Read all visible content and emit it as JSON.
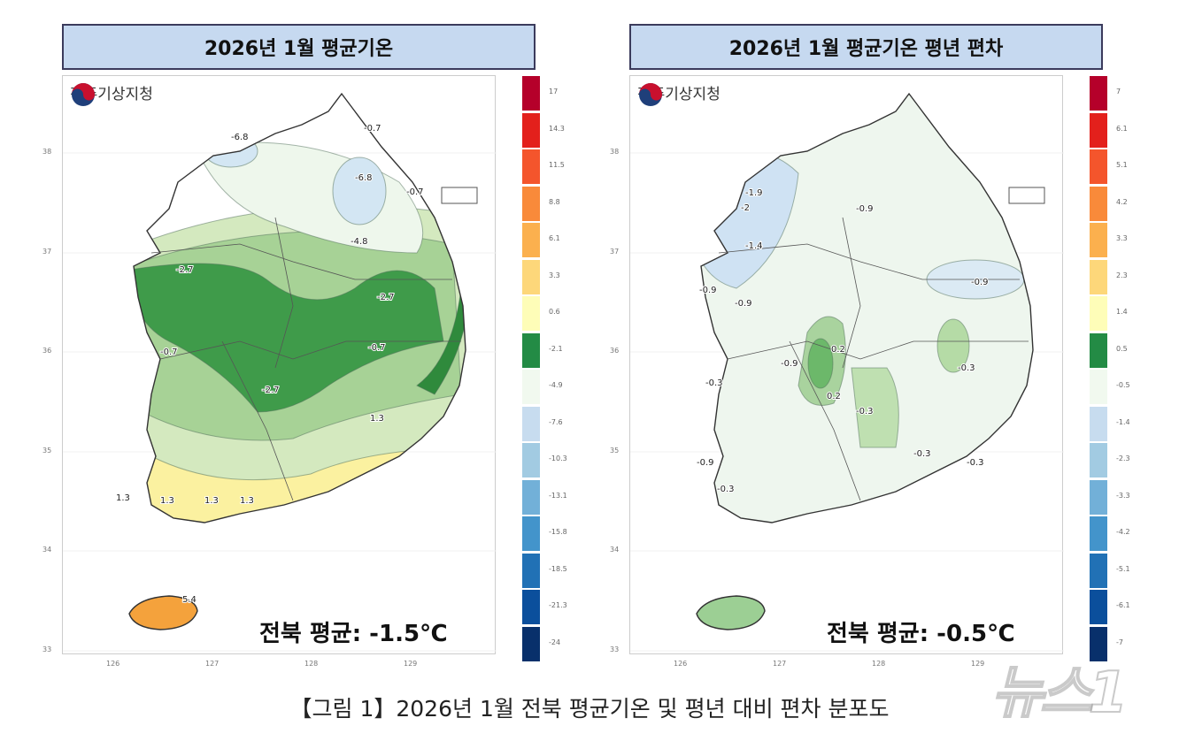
{
  "panels": [
    {
      "title": "2026년 1월 평균기온",
      "logo_text": "전주기상지청",
      "average_label": "전북 평균: -1.5℃",
      "legend_values": [
        "17",
        "14.3",
        "11.5",
        "8.8",
        "6.1",
        "3.3",
        "0.6",
        "-2.1",
        "-4.9",
        "-7.6",
        "-10.3",
        "-13.1",
        "-15.8",
        "-18.5",
        "-21.3",
        "-24"
      ],
      "contour_labels": [
        "-6.8",
        "-6.8",
        "-0.7",
        "-0.7",
        "-4.8",
        "-2.7",
        "-2.7",
        "-2.7",
        "-0.7",
        "-0.7",
        "1.3",
        "1.3",
        "1.3",
        "1.3",
        "1.3",
        "5.4"
      ]
    },
    {
      "title": "2026년 1월 평균기온 평년 편차",
      "logo_text": "전주기상지청",
      "average_label": "전북 평균: -0.5℃",
      "legend_values": [
        "7",
        "6.1",
        "5.1",
        "4.2",
        "3.3",
        "2.3",
        "1.4",
        "0.5",
        "-0.5",
        "-1.4",
        "-2.3",
        "-3.3",
        "-4.2",
        "-5.1",
        "-6.1",
        "-7"
      ],
      "contour_labels": [
        "-1.9",
        "-2",
        "-1.4",
        "-0.9",
        "-0.9",
        "-0.9",
        "-0.9",
        "0.2",
        "0.2",
        "-0.3",
        "-0.3",
        "-0.3",
        "-0.9",
        "-0.9",
        "-0.3",
        "-0.3",
        "-0.3"
      ]
    }
  ],
  "legend_colors": [
    "#b5002a",
    "#e3201c",
    "#f4552c",
    "#f98a3a",
    "#fbb04e",
    "#fdd77a",
    "#fefdb8",
    "#238b45",
    "#f1f9ef",
    "#c7dcef",
    "#a2cbe2",
    "#72b0d8",
    "#4394cb",
    "#2171b5",
    "#0b4f9c",
    "#08306b"
  ],
  "axes": {
    "lat_ticks": [
      "38",
      "37",
      "36",
      "35",
      "34",
      "33"
    ],
    "lon_ticks": [
      "126",
      "127",
      "128",
      "129"
    ]
  },
  "caption": "【그림 1】2026년 1월 전북 평균기온 및 평년 대비 편차 분포도",
  "watermark": "뉴스1"
}
